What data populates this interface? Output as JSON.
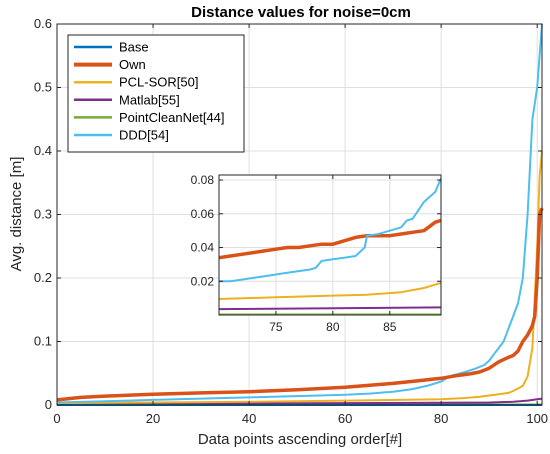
{
  "chart_data": {
    "type": "line",
    "title": "Distance values for noise=0cm",
    "xlabel": "Data points ascending order[#]",
    "ylabel": "Avg. distance [m]",
    "xlim": [
      0,
      101
    ],
    "ylim": [
      0,
      0.6
    ],
    "xticks": [
      0,
      20,
      40,
      60,
      80,
      100
    ],
    "yticks": [
      0,
      0.1,
      0.2,
      0.3,
      0.4,
      0.5,
      0.6
    ],
    "xtick_labels": [
      "0",
      "20",
      "40",
      "60",
      "80",
      "100"
    ],
    "ytick_labels": [
      "0",
      "0.1",
      "0.2",
      "0.3",
      "0.4",
      "0.5",
      "0.6"
    ],
    "grid": true,
    "legend_position": "top-left",
    "series": [
      {
        "name": "Base",
        "color": "#0072BD",
        "x": [
          0,
          101
        ],
        "y": [
          0,
          0
        ]
      },
      {
        "name": "Own",
        "color": "#D95319",
        "x": [
          0,
          5,
          10,
          20,
          30,
          40,
          50,
          60,
          70,
          75,
          80,
          83,
          86,
          88,
          90,
          92,
          94,
          95,
          96,
          97,
          98,
          99,
          99.5,
          100,
          100.5,
          101
        ],
        "y": [
          0.008,
          0.012,
          0.014,
          0.017,
          0.019,
          0.021,
          0.024,
          0.028,
          0.034,
          0.038,
          0.042,
          0.046,
          0.049,
          0.052,
          0.058,
          0.068,
          0.075,
          0.078,
          0.085,
          0.1,
          0.11,
          0.125,
          0.14,
          0.2,
          0.3,
          0.31
        ]
      },
      {
        "name": "PCL-SOR[50]",
        "color": "#EDB120",
        "x": [
          0,
          20,
          40,
          60,
          80,
          85,
          88,
          90,
          92,
          94,
          95,
          96,
          97,
          98,
          99,
          100,
          100.5,
          101
        ],
        "y": [
          0.003,
          0.004,
          0.005,
          0.007,
          0.009,
          0.011,
          0.013,
          0.015,
          0.017,
          0.019,
          0.022,
          0.026,
          0.03,
          0.045,
          0.09,
          0.25,
          0.36,
          0.4
        ]
      },
      {
        "name": "Matlab[55]",
        "color": "#7E2F8E",
        "x": [
          0,
          20,
          40,
          60,
          80,
          90,
          95,
          98,
          100,
          101
        ],
        "y": [
          0.002,
          0.002,
          0.0025,
          0.003,
          0.0035,
          0.004,
          0.005,
          0.007,
          0.009,
          0.01
        ]
      },
      {
        "name": "PointCleanNet[44]",
        "color": "#77AC30",
        "x": [
          0,
          101
        ],
        "y": [
          0.0008,
          0.0008
        ]
      },
      {
        "name": "DDD[54]",
        "color": "#4DBEEE",
        "x": [
          0,
          10,
          20,
          30,
          40,
          50,
          60,
          65,
          70,
          74,
          77,
          80,
          82,
          85,
          87,
          89,
          90,
          91,
          92,
          93,
          94,
          95,
          96,
          97,
          98,
          99,
          100,
          101
        ],
        "y": [
          0.004,
          0.006,
          0.008,
          0.01,
          0.012,
          0.014,
          0.016,
          0.018,
          0.021,
          0.025,
          0.03,
          0.037,
          0.046,
          0.052,
          0.057,
          0.063,
          0.07,
          0.08,
          0.09,
          0.1,
          0.12,
          0.14,
          0.16,
          0.2,
          0.3,
          0.45,
          0.5,
          0.6
        ]
      }
    ],
    "inset": {
      "xlim": [
        70,
        89.5
      ],
      "ylim": [
        0,
        0.083
      ],
      "xticks": [
        75,
        80,
        85
      ],
      "yticks": [
        0.02,
        0.04,
        0.06,
        0.08
      ],
      "xtick_labels": [
        "75",
        "80",
        "85"
      ],
      "ytick_labels": [
        "0.02",
        "0.04",
        "0.06",
        "0.08"
      ],
      "grid": true,
      "series": [
        {
          "name": "Own",
          "color": "#D95319",
          "x": [
            70,
            71,
            72,
            73,
            74,
            75,
            76,
            77,
            78,
            79,
            80,
            81,
            82,
            83,
            84,
            85,
            86,
            87,
            88,
            89,
            89.5
          ],
          "y": [
            0.034,
            0.035,
            0.036,
            0.037,
            0.038,
            0.039,
            0.04,
            0.04,
            0.041,
            0.042,
            0.042,
            0.044,
            0.046,
            0.047,
            0.047,
            0.047,
            0.048,
            0.049,
            0.05,
            0.055,
            0.056
          ]
        },
        {
          "name": "DDD[54]",
          "color": "#4DBEEE",
          "x": [
            70,
            71,
            72,
            73,
            74,
            75,
            76,
            77,
            78,
            78.5,
            79,
            80,
            81,
            82,
            82.8,
            83,
            84,
            85,
            86,
            86.5,
            87,
            88,
            89,
            89.5
          ],
          "y": [
            0.02,
            0.02,
            0.021,
            0.022,
            0.023,
            0.024,
            0.025,
            0.026,
            0.027,
            0.028,
            0.032,
            0.033,
            0.034,
            0.035,
            0.04,
            0.047,
            0.048,
            0.05,
            0.052,
            0.056,
            0.057,
            0.067,
            0.073,
            0.081
          ]
        },
        {
          "name": "PCL-SOR[50]",
          "color": "#EDB120",
          "x": [
            70,
            75,
            80,
            83,
            86,
            88,
            89,
            89.5
          ],
          "y": [
            0.0095,
            0.0105,
            0.0115,
            0.012,
            0.0135,
            0.016,
            0.018,
            0.019
          ]
        },
        {
          "name": "Matlab[55]",
          "color": "#7E2F8E",
          "x": [
            70,
            89.5
          ],
          "y": [
            0.0035,
            0.0045
          ]
        },
        {
          "name": "PointCleanNet[44]",
          "color": "#77AC30",
          "x": [
            70,
            89.5
          ],
          "y": [
            0.0003,
            0.0003
          ]
        }
      ]
    }
  }
}
